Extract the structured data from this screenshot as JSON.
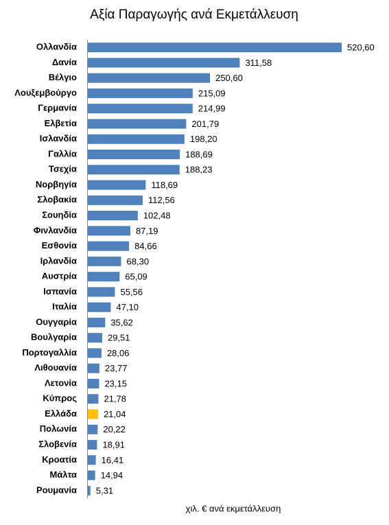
{
  "chart_data": {
    "type": "bar",
    "orientation": "horizontal",
    "title": "Αξία Παραγωγής ανά Εκμετάλλευση",
    "x_label": "χιλ. € ανά εκμετάλλευση",
    "categories": [
      "Ολλανδία",
      "Δανία",
      "Βέλγιο",
      "Λουξεμβούργο",
      "Γερμανία",
      "Ελβετία",
      "Ισλανδία",
      "Γαλλία",
      "Τσεχία",
      "Νορβηγία",
      "Σλοβακία",
      "Σουηδία",
      "Φινλανδία",
      "Εσθονία",
      "Ιρλανδία",
      "Αυστρία",
      "Ισπανία",
      "Ιταλία",
      "Ουγγαρία",
      "Βουλγαρία",
      "Πορτογαλλία",
      "Λιθουανία",
      "Λετονία",
      "Κύπρος",
      "Ελλάδα",
      "Πολωνία",
      "Σλοβενία",
      "Κροατία",
      "Μάλτα",
      "Ρουμανία"
    ],
    "values": [
      520.6,
      311.58,
      250.6,
      215.09,
      214.99,
      201.79,
      198.2,
      188.69,
      188.23,
      118.69,
      112.56,
      102.48,
      87.19,
      84.66,
      68.3,
      65.09,
      55.56,
      47.1,
      35.62,
      29.51,
      28.06,
      23.77,
      23.15,
      21.78,
      21.04,
      20.22,
      18.91,
      16.41,
      14.94,
      5.31
    ],
    "value_labels": [
      "520,60",
      "311,58",
      "250,60",
      "215,09",
      "214,99",
      "201,79",
      "198,20",
      "188,69",
      "188,23",
      "118,69",
      "112,56",
      "102,48",
      "87,19",
      "84,66",
      "68,30",
      "65,09",
      "55,56",
      "47,10",
      "35,62",
      "29,51",
      "28,06",
      "23,77",
      "23,15",
      "21,78",
      "21,04",
      "20,22",
      "18,91",
      "16,41",
      "14,94",
      "5,31"
    ],
    "colors": [
      "#4f81bd",
      "#4f81bd",
      "#4f81bd",
      "#4f81bd",
      "#4f81bd",
      "#4f81bd",
      "#4f81bd",
      "#4f81bd",
      "#4f81bd",
      "#4f81bd",
      "#4f81bd",
      "#4f81bd",
      "#4f81bd",
      "#4f81bd",
      "#4f81bd",
      "#4f81bd",
      "#4f81bd",
      "#4f81bd",
      "#4f81bd",
      "#4f81bd",
      "#4f81bd",
      "#4f81bd",
      "#4f81bd",
      "#4f81bd",
      "#ffc000",
      "#4f81bd",
      "#4f81bd",
      "#4f81bd",
      "#4f81bd",
      "#4f81bd"
    ]
  }
}
